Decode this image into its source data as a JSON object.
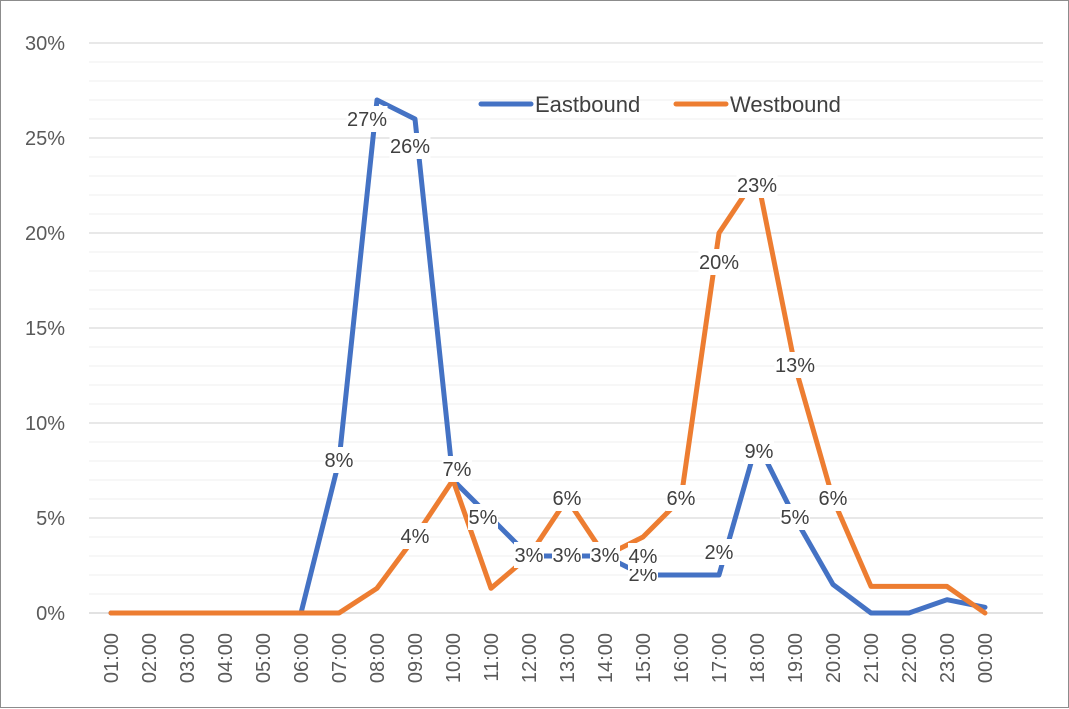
{
  "chart_data": {
    "type": "line",
    "categories": [
      "01:00",
      "02:00",
      "03:00",
      "04:00",
      "05:00",
      "06:00",
      "07:00",
      "08:00",
      "09:00",
      "10:00",
      "11:00",
      "12:00",
      "13:00",
      "14:00",
      "15:00",
      "16:00",
      "17:00",
      "18:00",
      "19:00",
      "20:00",
      "21:00",
      "22:00",
      "23:00",
      "00:00"
    ],
    "ylim": [
      0,
      30
    ],
    "yticks": [
      "0%",
      "5%",
      "10%",
      "15%",
      "20%",
      "25%",
      "30%"
    ],
    "grid": true,
    "legend_position": "top-center",
    "series": [
      {
        "name": "Eastbound",
        "color": "#4472C4",
        "values": [
          0,
          0,
          0,
          0,
          0,
          0,
          8,
          27,
          26,
          7,
          5,
          3,
          3,
          3,
          2,
          2,
          2,
          9,
          5,
          1.5,
          0,
          0,
          0.7,
          0.3
        ],
        "labels": [
          null,
          null,
          null,
          null,
          null,
          null,
          "8%",
          "27%",
          "26%",
          null,
          "5%",
          "3%",
          "3%",
          "3%",
          "2%",
          null,
          "2%",
          "9%",
          "5%",
          null,
          null,
          null,
          null,
          null
        ]
      },
      {
        "name": "Westbound",
        "color": "#ED7D31",
        "values": [
          0,
          0,
          0,
          0,
          0,
          0,
          0,
          1.3,
          4,
          7,
          1.3,
          3,
          6,
          3,
          4,
          6,
          20,
          23,
          13,
          6,
          1.4,
          1.4,
          1.4,
          0
        ],
        "labels": [
          null,
          null,
          null,
          null,
          null,
          null,
          null,
          null,
          "4%",
          "7%",
          null,
          null,
          "6%",
          null,
          "4%",
          "6%",
          "20%",
          "23%",
          "13%",
          "6%",
          null,
          null,
          null,
          null
        ]
      }
    ]
  }
}
